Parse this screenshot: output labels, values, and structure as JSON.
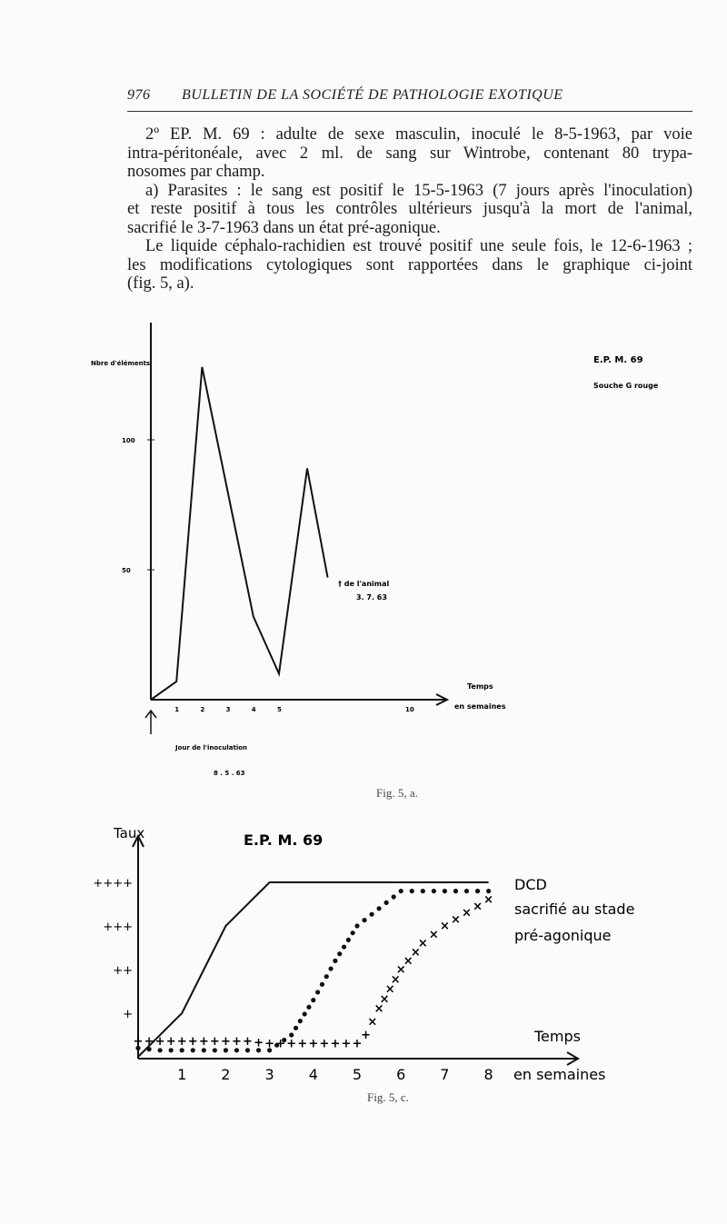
{
  "header": {
    "page_number": "976",
    "journal_title": "BULLETIN DE LA SOCIÉTÉ DE PATHOLOGIE EXOTIQUE"
  },
  "body": {
    "para1": [
      "2º EP. M. 69 : adulte de sexe masculin, inoculé le 8-5-1963, par voie",
      "intra-péritonéale, avec 2 ml. de sang sur Wintrobe, contenant 80 trypa-",
      "nosomes par champ."
    ],
    "para2": [
      "a) Parasites : le sang est positif le 15-5-1963 (7 jours après l'inoculation)",
      "et reste positif à tous les contrôles ultérieurs jusqu'à la mort de l'animal,",
      "sacrifié le 3-7-1963 dans un état pré-agonique."
    ],
    "para3": [
      "Le liquide céphalo-rachidien est trouvé positif une seule fois, le 12-6-1963 ;",
      "les modifications cytologiques sont rapportées dans le graphique ci-joint",
      "(fig. 5, a)."
    ]
  },
  "chart_data": [
    {
      "type": "line",
      "title": "E.P. M. 69",
      "subtitle": "Souche G rouge",
      "ylabel": "Nbre d'éléments",
      "xlabel": "Temps en semaines",
      "xlabel_line1": "Temps",
      "xlabel_line2": "en semaines",
      "x_ticks": [
        "1",
        "2",
        "3",
        "4",
        "5",
        "10"
      ],
      "y_ticks": [
        "50",
        "100"
      ],
      "ylim": [
        0,
        140
      ],
      "xlim": [
        0,
        11
      ],
      "x": [
        0,
        1,
        2,
        4,
        5,
        6.1,
        6.9
      ],
      "y": [
        0,
        7,
        128,
        32,
        10,
        89,
        47
      ],
      "annotations": {
        "death_line1": "† de l'animal",
        "death_line2": "3. 7. 63",
        "inoculation_line1": "Jour de l'inoculation",
        "inoculation_line2": "8 . 5 . 63"
      },
      "caption": "Fig. 5, a.",
      "grid": false
    },
    {
      "type": "line",
      "title": "E.P. M. 69",
      "ylabel": "Taux",
      "xlabel_line1": "Temps",
      "xlabel_line2": "en semaines",
      "x_ticks": [
        "1",
        "2",
        "3",
        "4",
        "5",
        "6",
        "7",
        "8"
      ],
      "y_ticks": [
        "+",
        "++",
        "+++",
        "++++"
      ],
      "ylim": [
        0,
        4.5
      ],
      "xlim": [
        0,
        8.5
      ],
      "series": [
        {
          "style": "solid",
          "x": [
            0,
            1,
            2,
            3,
            8
          ],
          "y": [
            0,
            1,
            3,
            4,
            4
          ]
        },
        {
          "style": "dots",
          "x": [
            0,
            0.5,
            1,
            1.5,
            2,
            2.5,
            3,
            3.5,
            4,
            4.5,
            5,
            5.5,
            6,
            6.5,
            7,
            7.5,
            8
          ],
          "y": [
            0.2,
            0.15,
            0.15,
            0.15,
            0.15,
            0.15,
            0.15,
            0.5,
            1.3,
            2.2,
            3.0,
            3.4,
            3.8,
            3.8,
            3.8,
            3.8,
            3.8
          ]
        },
        {
          "style": "crosses",
          "x": [
            0,
            0.5,
            1,
            1.5,
            2,
            2.5,
            3,
            3.5,
            4,
            4.5,
            5,
            5.2,
            5.5,
            6,
            6.5,
            7,
            7.5,
            8
          ],
          "y": [
            0.35,
            0.35,
            0.35,
            0.35,
            0.35,
            0.35,
            0.3,
            0.3,
            0.3,
            0.3,
            0.3,
            0.5,
            1.1,
            2.0,
            2.6,
            3.0,
            3.3,
            3.6
          ]
        }
      ],
      "legend": {
        "solid": "DCD",
        "other_line1": "sacrifié au stade",
        "other_line2": "pré-agonique"
      },
      "caption": "Fig. 5, c.",
      "grid": false
    }
  ]
}
